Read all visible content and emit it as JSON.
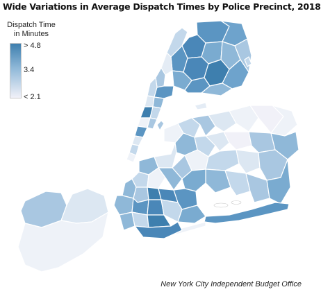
{
  "title": "Wide Variations in Average Dispatch Times by Police Precinct, 2018",
  "legend": {
    "title_line1": "Dispatch Time",
    "title_line2": "in Minutes",
    "max_label": "> 4.8",
    "mid_label": "3.4",
    "min_label": "< 2.1",
    "color_high": "#3e7fae",
    "color_low": "#f1f1f8"
  },
  "source": "New York City Independent Budget Office",
  "colors": {
    "background": "#ffffff",
    "outline": "#ffffff",
    "water": "#ffffff"
  }
}
